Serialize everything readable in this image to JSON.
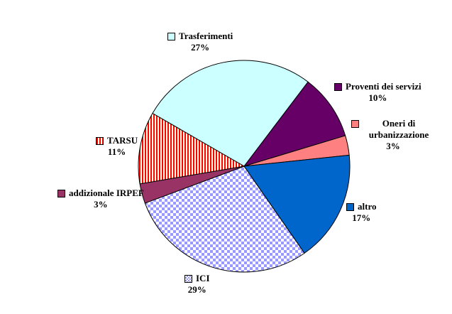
{
  "page": {
    "background_color": "#FFFFFF",
    "text_color": "#000000"
  },
  "chart_data": {
    "type": "pie",
    "title": "",
    "legend_position": "around-slices",
    "start_angle_deg_clockwise_from_top": -60,
    "direction": "clockwise",
    "categories": [
      "Trasferimenti",
      "Proventi dei servizi",
      "Oneri di urbanizzazione",
      "altro",
      "ICI",
      "addizionale IRPEF",
      "TARSU"
    ],
    "values": [
      27,
      10,
      3,
      17,
      29,
      3,
      11
    ],
    "slices": [
      {
        "label": "Trasferimenti",
        "pct_label": "27%",
        "value": 27,
        "color": "#CCFFFF",
        "pattern": "solid",
        "pattern_bg": "#FFFFFF"
      },
      {
        "label": "Proventi dei servizi",
        "pct_label": "10%",
        "value": 10,
        "color": "#660066",
        "pattern": "solid",
        "pattern_bg": "#FFFFFF"
      },
      {
        "label": "Oneri di urbanizzazione",
        "pct_label": "3%",
        "value": 3,
        "color": "#FF8080",
        "pattern": "solid",
        "pattern_bg": "#FFFFFF"
      },
      {
        "label": "altro",
        "pct_label": "17%",
        "value": 17,
        "color": "#0066CC",
        "pattern": "solid",
        "pattern_bg": "#FFFFFF"
      },
      {
        "label": "ICI",
        "pct_label": "29%",
        "value": 29,
        "color": "#9999FF",
        "pattern": "checker",
        "pattern_bg": "#FFFFFF"
      },
      {
        "label": "addizionale IRPEF",
        "pct_label": "3%",
        "value": 3,
        "color": "#993366",
        "pattern": "solid",
        "pattern_bg": "#FFFFFF"
      },
      {
        "label": "TARSU",
        "pct_label": "11%",
        "value": 11,
        "color": "#FF0000",
        "pattern": "vstripes",
        "pattern_bg": "#FFFFE8"
      }
    ],
    "slice_border_color": "#000000"
  }
}
